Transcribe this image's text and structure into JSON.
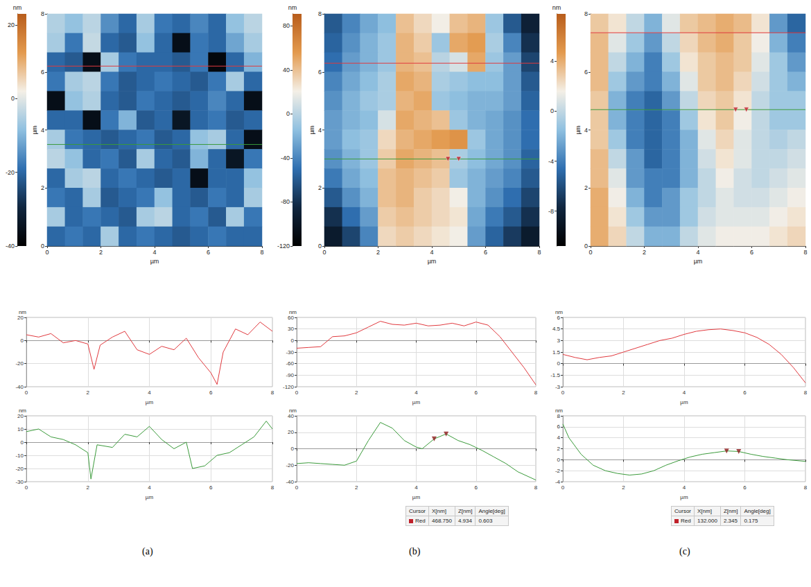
{
  "chart_data": [
    {
      "type": "heatmap",
      "label": "(a)",
      "xlim": [
        0,
        8
      ],
      "ylim": [
        0,
        8
      ],
      "xticks": [
        0,
        2,
        4,
        6,
        8
      ],
      "yticks": [
        0,
        2,
        4,
        6,
        8
      ],
      "x_label": "µm",
      "y_label": "µm",
      "color_label": "nm",
      "color_range": [
        -40,
        23
      ],
      "color_ticks": [
        -40,
        -20,
        0,
        20
      ],
      "cells": [
        [
          -5,
          -8,
          -4,
          -15,
          -20,
          -6,
          -18,
          -20,
          -16,
          -20,
          -8,
          -4
        ],
        [
          -6,
          -18,
          -3,
          -20,
          -22,
          -8,
          -20,
          -36,
          -18,
          -20,
          -12,
          -6
        ],
        [
          -20,
          -22,
          -36,
          -6,
          -18,
          -20,
          -20,
          -22,
          -18,
          -38,
          -20,
          -10
        ],
        [
          -18,
          -6,
          -4,
          -18,
          -22,
          -20,
          -18,
          -20,
          -22,
          -18,
          -6,
          -20
        ],
        [
          -36,
          -8,
          -5,
          -20,
          -22,
          -18,
          -20,
          -22,
          -20,
          -16,
          -20,
          -36
        ],
        [
          -20,
          -20,
          -36,
          -18,
          -10,
          -22,
          -20,
          -34,
          -20,
          -18,
          -22,
          -20
        ],
        [
          -6,
          -18,
          -20,
          -22,
          -20,
          -18,
          -22,
          -20,
          -8,
          -6,
          -20,
          -36
        ],
        [
          -4,
          -8,
          -20,
          -18,
          -22,
          -6,
          -20,
          -22,
          -10,
          -20,
          -34,
          -18
        ],
        [
          -20,
          -6,
          -4,
          -20,
          -18,
          -20,
          -22,
          -20,
          -36,
          -20,
          -20,
          -8
        ],
        [
          -18,
          -20,
          -6,
          -22,
          -20,
          -18,
          -8,
          -20,
          -22,
          -18,
          -20,
          -6
        ],
        [
          -6,
          -20,
          -18,
          -20,
          -22,
          -6,
          -4,
          -20,
          -18,
          -22,
          -6,
          -18
        ],
        [
          -20,
          -18,
          -20,
          -6,
          -20,
          -18,
          -20,
          -22,
          -20,
          -18,
          -20,
          -20
        ]
      ],
      "profiles": [
        {
          "type": "line",
          "color": "#e0393e",
          "y": 6.2,
          "xlim": [
            0,
            8
          ],
          "xticks": [
            0,
            2,
            4,
            6,
            8
          ],
          "ylim": [
            -40,
            20
          ],
          "yticks": [
            -40,
            -20,
            0,
            20
          ],
          "x_label": "µm",
          "y_label": "nm",
          "x": [
            0,
            0.4,
            0.8,
            1.2,
            1.6,
            2.0,
            2.2,
            2.4,
            2.8,
            3.2,
            3.6,
            4.0,
            4.4,
            4.8,
            5.2,
            5.6,
            6.0,
            6.2,
            6.4,
            6.8,
            7.2,
            7.6,
            8.0
          ],
          "values": [
            5,
            3,
            6,
            -2,
            0,
            -3,
            -25,
            -4,
            3,
            8,
            -8,
            -12,
            -5,
            -8,
            2,
            -15,
            -28,
            -38,
            -10,
            10,
            5,
            16,
            8
          ]
        },
        {
          "type": "line",
          "color": "#3a9a3a",
          "y": 3.5,
          "xlim": [
            0,
            8
          ],
          "xticks": [
            0,
            2,
            4,
            6,
            8
          ],
          "ylim": [
            -30,
            20
          ],
          "yticks": [
            -30,
            -20,
            -10,
            0,
            10,
            20
          ],
          "x_label": "µm",
          "y_label": "nm",
          "x": [
            0,
            0.4,
            0.8,
            1.2,
            1.6,
            2.0,
            2.1,
            2.3,
            2.8,
            3.2,
            3.6,
            4.0,
            4.4,
            4.8,
            5.2,
            5.4,
            5.8,
            6.2,
            6.6,
            7.0,
            7.4,
            7.8,
            8.0
          ],
          "values": [
            8,
            10,
            4,
            2,
            -2,
            -8,
            -28,
            -2,
            -4,
            6,
            4,
            12,
            2,
            -5,
            0,
            -20,
            -18,
            -10,
            -8,
            -2,
            4,
            16,
            10
          ]
        }
      ]
    },
    {
      "type": "heatmap",
      "label": "(b)",
      "xlim": [
        0,
        8
      ],
      "ylim": [
        0,
        8
      ],
      "xticks": [
        0,
        2,
        4,
        6,
        8
      ],
      "yticks": [
        0,
        2,
        4,
        6,
        8
      ],
      "x_label": "µm",
      "y_label": "µm",
      "color_label": "nm",
      "color_range": [
        -120,
        91
      ],
      "color_ticks": [
        -120,
        -80,
        -40,
        0,
        40,
        80
      ],
      "cells": [
        [
          -60,
          -40,
          -25,
          -15,
          40,
          30,
          20,
          40,
          45,
          -10,
          -60,
          -90
        ],
        [
          -55,
          -35,
          -20,
          -10,
          45,
          35,
          -10,
          50,
          55,
          -5,
          -40,
          -80
        ],
        [
          -50,
          -30,
          -20,
          -10,
          45,
          40,
          0,
          10,
          50,
          -10,
          -30,
          -70
        ],
        [
          -40,
          -25,
          -15,
          -5,
          50,
          45,
          -5,
          -10,
          -15,
          -15,
          -30,
          -60
        ],
        [
          -35,
          -20,
          -10,
          -5,
          45,
          50,
          -10,
          -15,
          -20,
          -20,
          -30,
          -55
        ],
        [
          -30,
          -20,
          -15,
          10,
          50,
          45,
          40,
          -10,
          -20,
          -25,
          -35,
          -50
        ],
        [
          -30,
          -15,
          -10,
          30,
          45,
          50,
          55,
          60,
          -10,
          -25,
          -35,
          -50
        ],
        [
          -35,
          -20,
          -10,
          35,
          50,
          45,
          40,
          -5,
          -15,
          -25,
          -35,
          -55
        ],
        [
          -45,
          -25,
          -15,
          40,
          45,
          40,
          35,
          -10,
          -20,
          -30,
          -40,
          -60
        ],
        [
          -60,
          -35,
          -20,
          40,
          45,
          35,
          30,
          20,
          -20,
          -35,
          -50,
          -70
        ],
        [
          -80,
          -50,
          -30,
          35,
          40,
          35,
          30,
          25,
          -25,
          -45,
          -60,
          -80
        ],
        [
          -95,
          -70,
          -40,
          30,
          35,
          30,
          25,
          20,
          -30,
          -55,
          -75,
          -95
        ]
      ],
      "profiles": [
        {
          "type": "line",
          "color": "#e0393e",
          "y": 6.3,
          "xlim": [
            0,
            8
          ],
          "xticks": [
            0,
            2,
            4,
            6,
            8
          ],
          "ylim": [
            -120,
            60
          ],
          "yticks": [
            -120,
            -90,
            -60,
            -30,
            0,
            30,
            60
          ],
          "x_label": "µm",
          "y_label": "nm",
          "x": [
            0,
            0.4,
            0.8,
            1.2,
            1.6,
            2.0,
            2.4,
            2.8,
            3.2,
            3.6,
            4.0,
            4.4,
            4.8,
            5.2,
            5.6,
            6.0,
            6.4,
            6.8,
            7.2,
            7.6,
            8.0
          ],
          "values": [
            -20,
            -18,
            -16,
            10,
            12,
            20,
            35,
            50,
            42,
            40,
            45,
            38,
            40,
            45,
            38,
            48,
            40,
            10,
            -30,
            -70,
            -115
          ]
        },
        {
          "type": "line",
          "color": "#3a9a3a",
          "y": 3.0,
          "xlim": [
            0,
            8
          ],
          "xticks": [
            0,
            2,
            4,
            6,
            8
          ],
          "ylim": [
            -40,
            40
          ],
          "yticks": [
            -40,
            -20,
            0,
            20,
            40
          ],
          "x_label": "µm",
          "y_label": "nm",
          "x": [
            0,
            0.4,
            0.8,
            1.2,
            1.6,
            2.0,
            2.4,
            2.8,
            3.2,
            3.6,
            4.0,
            4.2,
            4.6,
            5.0,
            5.4,
            5.8,
            6.2,
            6.6,
            7.0,
            7.4,
            8.0
          ],
          "values": [
            -18,
            -17,
            -18,
            -19,
            -20,
            -15,
            10,
            32,
            25,
            10,
            2,
            0,
            12,
            18,
            10,
            5,
            -2,
            -10,
            -18,
            -28,
            -38
          ],
          "cursors": [
            {
              "x": 4.6,
              "z": 12
            },
            {
              "x": 5.0,
              "z": 18
            }
          ]
        }
      ],
      "table": {
        "header": [
          "Cursor",
          "X[nm]",
          "Z[nm]",
          "Angle[deg]"
        ],
        "rows": [
          [
            "Red",
            "468.750",
            "4.934",
            "0.603"
          ]
        ]
      }
    },
    {
      "type": "heatmap",
      "label": "(c)",
      "xlim": [
        0,
        8
      ],
      "ylim": [
        0,
        8
      ],
      "xticks": [
        0,
        2,
        4,
        6,
        8
      ],
      "yticks": [
        0,
        2,
        4,
        6,
        8
      ],
      "x_label": "µm",
      "y_label": "µm",
      "color_label": "nm",
      "color_range": [
        -10.8,
        7.8
      ],
      "color_ticks": [
        -8,
        -4,
        0,
        4
      ],
      "cells": [
        [
          3,
          2,
          0,
          -2,
          1,
          3,
          3.5,
          4,
          3.5,
          2,
          -3,
          -5
        ],
        [
          3.5,
          1,
          -1,
          -3,
          0,
          2.5,
          3.5,
          4,
          3,
          1.5,
          -2,
          -4
        ],
        [
          3.5,
          0,
          -2,
          -4,
          -1,
          2,
          3,
          3.5,
          3,
          1,
          -1,
          -3
        ],
        [
          3.5,
          -1,
          -3,
          -4,
          -2,
          1,
          3,
          3.5,
          2.5,
          0.5,
          -1,
          -2
        ],
        [
          3,
          -2,
          -4,
          -5,
          -3,
          0,
          2.5,
          3,
          2,
          0,
          -1,
          -1
        ],
        [
          3,
          -2,
          -4,
          -5,
          -4,
          -1,
          2,
          3,
          1.5,
          0,
          -1,
          -1
        ],
        [
          3,
          -1,
          -4,
          -5,
          -4,
          -2,
          1,
          2.5,
          1,
          0,
          -0.5,
          0
        ],
        [
          3.5,
          0,
          -3,
          -5,
          -4,
          -2,
          0.5,
          2,
          1,
          0,
          0,
          0.5
        ],
        [
          3.5,
          1,
          -3,
          -4,
          -4,
          -2,
          0,
          1.5,
          0.5,
          0,
          0.5,
          1
        ],
        [
          4,
          1.5,
          -2,
          -4,
          -3,
          -1,
          0,
          1,
          0.5,
          0.5,
          1,
          1.5
        ],
        [
          4,
          2,
          -1,
          -3,
          -3,
          -1,
          0.5,
          1,
          1,
          1,
          1.5,
          2
        ],
        [
          4,
          2.5,
          0,
          -2,
          -2,
          0,
          1,
          1.5,
          1.5,
          1.5,
          2,
          2.5
        ]
      ],
      "profiles": [
        {
          "type": "line",
          "color": "#e0393e",
          "y": 7.35,
          "xlim": [
            0,
            8
          ],
          "xticks": [
            0,
            2,
            4,
            6,
            8
          ],
          "ylim": [
            -3,
            6
          ],
          "yticks": [
            -3,
            -1.5,
            0,
            1.5,
            3,
            4.5,
            6
          ],
          "x_label": "µm",
          "y_label": "nm",
          "x": [
            0,
            0.4,
            0.8,
            1.2,
            1.6,
            2.0,
            2.4,
            2.8,
            3.2,
            3.6,
            4.0,
            4.4,
            4.8,
            5.2,
            5.6,
            6.0,
            6.4,
            6.8,
            7.2,
            7.6,
            8.0
          ],
          "values": [
            1.2,
            0.8,
            0.5,
            0.8,
            1.0,
            1.5,
            2.0,
            2.5,
            3.0,
            3.3,
            3.8,
            4.2,
            4.4,
            4.5,
            4.3,
            4.0,
            3.4,
            2.5,
            1.2,
            -0.5,
            -2.5
          ]
        },
        {
          "type": "line",
          "color": "#3a9a3a",
          "y": 4.7,
          "xlim": [
            0,
            8
          ],
          "xticks": [
            0,
            2,
            4,
            6,
            8
          ],
          "ylim": [
            -4,
            8
          ],
          "yticks": [
            -4,
            -2,
            0,
            2,
            4,
            6,
            8
          ],
          "x_label": "µm",
          "y_label": "nm",
          "x": [
            0,
            0.2,
            0.6,
            1.0,
            1.4,
            1.8,
            2.2,
            2.6,
            3.0,
            3.4,
            3.8,
            4.2,
            4.6,
            5.0,
            5.4,
            5.8,
            6.2,
            6.6,
            7.0,
            7.4,
            8.0
          ],
          "values": [
            6.5,
            4,
            1,
            -1,
            -2,
            -2.5,
            -2.8,
            -2.6,
            -2,
            -1,
            -0.2,
            0.5,
            1,
            1.3,
            1.6,
            1.5,
            1.0,
            0.6,
            0.3,
            0,
            -0.3
          ],
          "cursors": [
            {
              "x": 5.4,
              "z": 1.6
            },
            {
              "x": 5.8,
              "z": 1.5
            }
          ]
        }
      ],
      "table": {
        "header": [
          "Cursor",
          "X[nm]",
          "Z[nm]",
          "Angle[deg]"
        ],
        "rows": [
          [
            "Red",
            "132.000",
            "2.345",
            "0.175"
          ]
        ]
      }
    }
  ]
}
